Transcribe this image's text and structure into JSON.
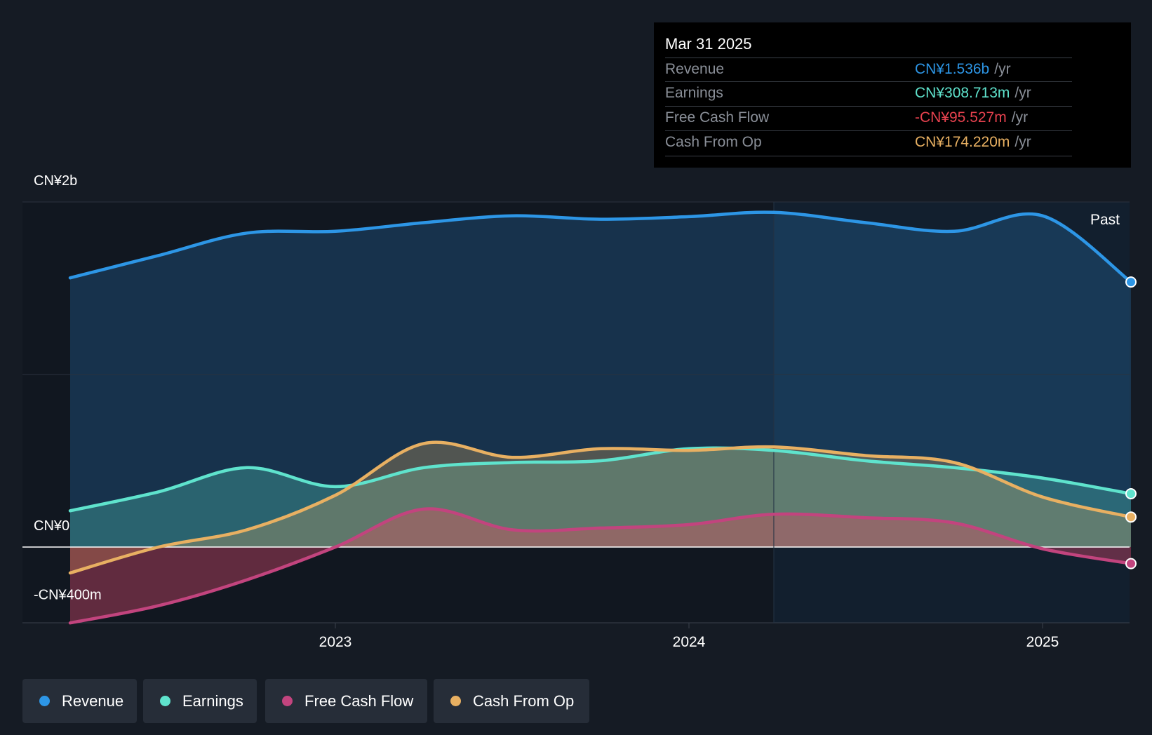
{
  "tooltip": {
    "date": "Mar 31 2025",
    "rows": [
      {
        "label": "Revenue",
        "value": "CN¥1.536b",
        "unit": "/yr",
        "color": "#2d96e6"
      },
      {
        "label": "Earnings",
        "value": "CN¥308.713m",
        "unit": "/yr",
        "color": "#5fe3cd"
      },
      {
        "label": "Free Cash Flow",
        "value": "-CN¥95.527m",
        "unit": "/yr",
        "color": "#e8424f"
      },
      {
        "label": "Cash From Op",
        "value": "CN¥174.220m",
        "unit": "/yr",
        "color": "#e8b062"
      }
    ]
  },
  "legend": [
    {
      "label": "Revenue",
      "color": "#2d96e6"
    },
    {
      "label": "Earnings",
      "color": "#5fe3cd"
    },
    {
      "label": "Free Cash Flow",
      "color": "#c2447e"
    },
    {
      "label": "Cash From Op",
      "color": "#e8b062"
    }
  ],
  "chart_data": {
    "type": "area",
    "y_ticks": [
      "CN¥2b",
      "CN¥0",
      "-CN¥400m"
    ],
    "ylim": [
      -400,
      2000
    ],
    "y_gridlines": [
      2000,
      1000,
      0,
      -400
    ],
    "x_ticks": [
      {
        "label": "2023",
        "x": 2023.0
      },
      {
        "label": "2024",
        "x": 2024.0
      },
      {
        "label": "2025",
        "x": 2025.0
      }
    ],
    "xlim": [
      2022.12,
      2025.25
    ],
    "past_label": "Past",
    "highlight_x": 2024.24,
    "series": [
      {
        "name": "Revenue",
        "color": "#2d96e6",
        "x": [
          2022.25,
          2022.5,
          2022.75,
          2023.0,
          2023.25,
          2023.5,
          2023.75,
          2024.0,
          2024.24,
          2024.5,
          2024.75,
          2025.0,
          2025.25
        ],
        "y": [
          1560,
          1690,
          1820,
          1830,
          1880,
          1920,
          1900,
          1915,
          1940,
          1880,
          1830,
          1920,
          1536
        ]
      },
      {
        "name": "Earnings",
        "color": "#5fe3cd",
        "x": [
          2022.25,
          2022.5,
          2022.75,
          2023.0,
          2023.25,
          2023.5,
          2023.75,
          2024.0,
          2024.24,
          2024.5,
          2024.75,
          2025.0,
          2025.25
        ],
        "y": [
          210,
          320,
          460,
          350,
          460,
          490,
          500,
          570,
          560,
          500,
          460,
          400,
          309
        ]
      },
      {
        "name": "Free Cash Flow",
        "color": "#c2447e",
        "x": [
          2022.25,
          2022.5,
          2022.75,
          2023.0,
          2023.25,
          2023.5,
          2023.75,
          2024.0,
          2024.24,
          2024.5,
          2024.75,
          2025.0,
          2025.25
        ],
        "y": [
          -440,
          -340,
          -190,
          0,
          220,
          100,
          110,
          130,
          190,
          170,
          140,
          -10,
          -96
        ]
      },
      {
        "name": "Cash From Op",
        "color": "#e8b062",
        "x": [
          2022.25,
          2022.5,
          2022.75,
          2023.0,
          2023.25,
          2023.5,
          2023.75,
          2024.0,
          2024.24,
          2024.5,
          2024.75,
          2025.0,
          2025.25
        ],
        "y": [
          -150,
          0,
          100,
          300,
          600,
          520,
          570,
          560,
          580,
          530,
          490,
          290,
          174
        ]
      }
    ]
  }
}
